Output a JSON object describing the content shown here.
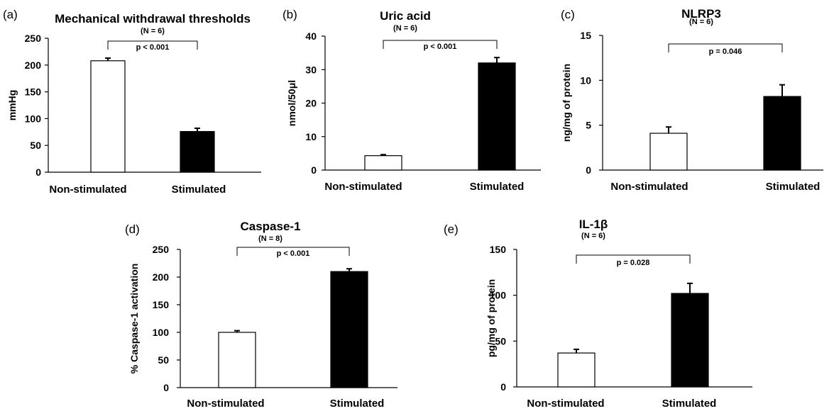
{
  "figure": {
    "panels": [
      {
        "letter": "(a)",
        "n_label": "(N = 6)",
        "p_label": "p < 0.001",
        "chart_data": {
          "type": "bar",
          "title": "Mechanical withdrawal thresholds",
          "ylabel": "mmHg",
          "xlabel": "",
          "categories": [
            "Non-stimulated",
            "Stimulated"
          ],
          "values": [
            208,
            76
          ],
          "errors": [
            5,
            6
          ],
          "bar_colors": [
            "#ffffff",
            "#000000"
          ],
          "ylim": [
            0,
            250
          ],
          "yticks": [
            0,
            50,
            100,
            150,
            200,
            250
          ],
          "ytick_labels": [
            "0",
            "50",
            "100",
            "150",
            "200",
            "250"
          ]
        }
      },
      {
        "letter": "(b)",
        "n_label": "(N = 6)",
        "p_label": "p < 0.001",
        "chart_data": {
          "type": "bar",
          "title": "Uric acid",
          "ylabel": "nmol/50μl",
          "xlabel": "",
          "categories": [
            "Non-stimulated",
            "Stimulated"
          ],
          "values": [
            4.3,
            32
          ],
          "errors": [
            0.3,
            1.6
          ],
          "bar_colors": [
            "#ffffff",
            "#000000"
          ],
          "ylim": [
            0,
            40
          ],
          "yticks": [
            0,
            10,
            20,
            30,
            40
          ],
          "ytick_labels": [
            "0",
            "10",
            "20",
            "30",
            "40"
          ]
        }
      },
      {
        "letter": "(c)",
        "n_label": "(N = 6)",
        "p_label": "p = 0.046",
        "chart_data": {
          "type": "bar",
          "title": "NLRP3",
          "ylabel": "ng/mg of protein",
          "xlabel": "",
          "categories": [
            "Non-stimulated",
            "Stimulated"
          ],
          "values": [
            4.1,
            8.2
          ],
          "errors": [
            0.7,
            1.3
          ],
          "bar_colors": [
            "#ffffff",
            "#000000"
          ],
          "ylim": [
            0,
            15
          ],
          "yticks": [
            0,
            5,
            10,
            15
          ],
          "ytick_labels": [
            "0",
            "5",
            "10",
            "15"
          ]
        }
      },
      {
        "letter": "(d)",
        "n_label": "(N = 8)",
        "p_label": "p < 0.001",
        "chart_data": {
          "type": "bar",
          "title": "Caspase-1",
          "ylabel": "% Caspase-1 activation",
          "xlabel": "",
          "categories": [
            "Non-stimulated",
            "Stimulated"
          ],
          "values": [
            100,
            210
          ],
          "errors": [
            3,
            5
          ],
          "bar_colors": [
            "#ffffff",
            "#000000"
          ],
          "ylim": [
            0,
            250
          ],
          "yticks": [
            0,
            50,
            100,
            150,
            200,
            250
          ],
          "ytick_labels": [
            "0",
            "50",
            "100",
            "150",
            "200",
            "250"
          ]
        }
      },
      {
        "letter": "(e)",
        "n_label": "(N = 6)",
        "p_label": "p = 0.028",
        "chart_data": {
          "type": "bar",
          "title": "IL-1β",
          "ylabel": "pg/mg of protein",
          "xlabel": "",
          "categories": [
            "Non-stimulated",
            "Stimulated"
          ],
          "values": [
            37,
            102
          ],
          "errors": [
            4,
            11
          ],
          "bar_colors": [
            "#ffffff",
            "#000000"
          ],
          "ylim": [
            0,
            150
          ],
          "yticks": [
            0,
            50,
            100,
            150
          ],
          "ytick_labels": [
            "0",
            "50",
            "100",
            "150"
          ]
        }
      }
    ]
  }
}
